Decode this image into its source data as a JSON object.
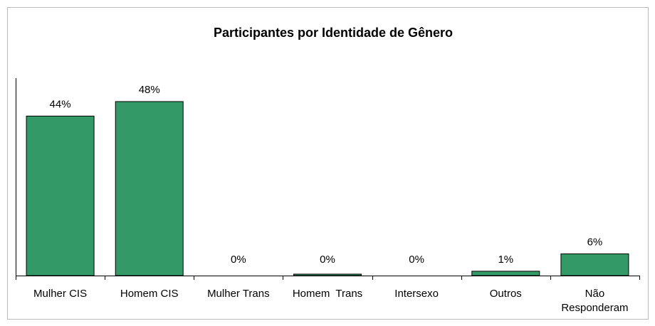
{
  "chart_data": {
    "type": "bar",
    "title": "Participantes por Identidade de Gênero",
    "categories": [
      "Mulher CIS",
      "Homem CIS",
      "Mulher Trans",
      "Homem  Trans",
      "Intersexo",
      "Outros",
      "Não Responderam"
    ],
    "values": [
      44,
      48,
      0,
      0.4,
      0,
      1.2,
      6
    ],
    "value_labels": [
      "44%",
      "48%",
      "0%",
      "0%",
      "0%",
      "1%",
      "6%"
    ],
    "color": "#339966"
  }
}
